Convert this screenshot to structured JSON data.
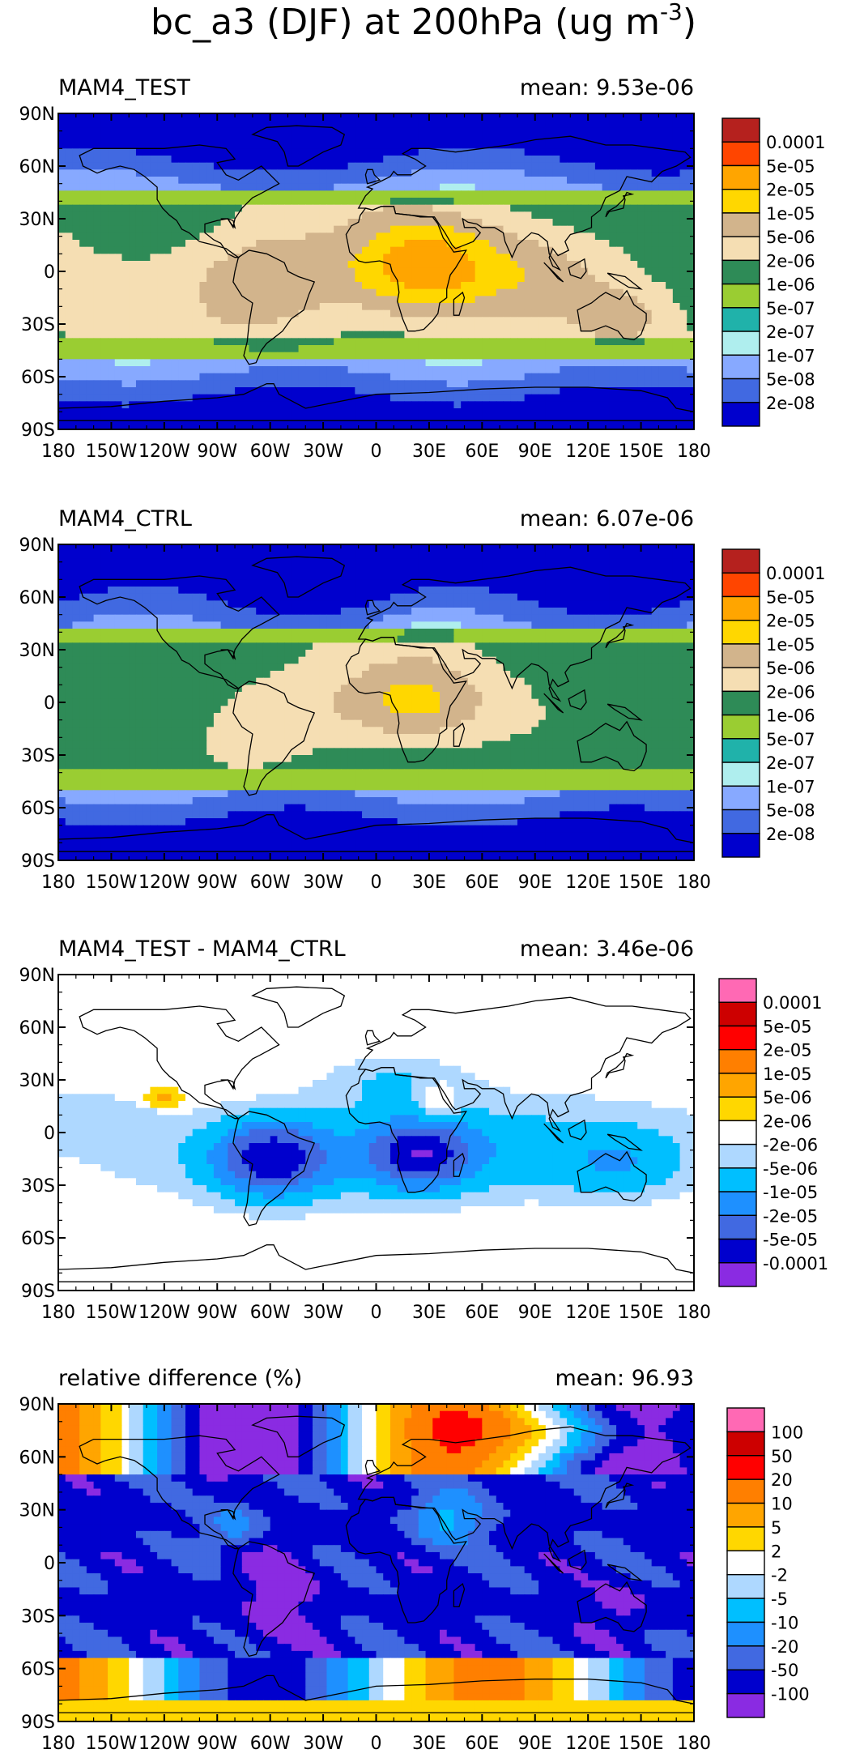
{
  "title": "bc_a3 (DJF) at 200hPa (ug m",
  "title_sup": "-3",
  "title_close": ")",
  "colors": {
    "land": "#000000",
    "frame": "#000000"
  },
  "chart_data": [
    {
      "type": "heatmap",
      "label": "MAM4_TEST",
      "mean_text": "mean: 9.53e-06",
      "lat_ticks": [
        "90N",
        "60N",
        "30N",
        "0",
        "30S",
        "60S",
        "90S"
      ],
      "lon_ticks": [
        "180",
        "150W",
        "120W",
        "90W",
        "60W",
        "30W",
        "0",
        "30E",
        "60E",
        "90E",
        "120E",
        "150E",
        "180"
      ],
      "colorbar": {
        "labels": [
          "0.0001",
          "5e-05",
          "2e-05",
          "1e-05",
          "5e-06",
          "2e-06",
          "1e-06",
          "5e-07",
          "2e-07",
          "1e-07",
          "5e-08",
          "2e-08"
        ],
        "colors": [
          "#b5211e",
          "#ff4500",
          "#ffa500",
          "#ffd700",
          "#d2b48c",
          "#f5deb3",
          "#2e8b57",
          "#9acd32",
          "#20b2aa",
          "#afeeee",
          "#87a9ff",
          "#4169e1",
          "#0000cd"
        ]
      },
      "field": "test"
    },
    {
      "type": "heatmap",
      "label": "MAM4_CTRL",
      "mean_text": "mean: 6.07e-06",
      "lat_ticks": [
        "90N",
        "60N",
        "30N",
        "0",
        "30S",
        "60S",
        "90S"
      ],
      "lon_ticks": [
        "180",
        "150W",
        "120W",
        "90W",
        "60W",
        "30W",
        "0",
        "30E",
        "60E",
        "90E",
        "120E",
        "150E",
        "180"
      ],
      "colorbar": {
        "labels": [
          "0.0001",
          "5e-05",
          "2e-05",
          "1e-05",
          "5e-06",
          "2e-06",
          "1e-06",
          "5e-07",
          "2e-07",
          "1e-07",
          "5e-08",
          "2e-08"
        ],
        "colors": [
          "#b5211e",
          "#ff4500",
          "#ffa500",
          "#ffd700",
          "#d2b48c",
          "#f5deb3",
          "#2e8b57",
          "#9acd32",
          "#20b2aa",
          "#afeeee",
          "#87a9ff",
          "#4169e1",
          "#0000cd"
        ]
      },
      "field": "ctrl"
    },
    {
      "type": "heatmap",
      "label": "MAM4_TEST - MAM4_CTRL",
      "mean_text": "mean: 3.46e-06",
      "lat_ticks": [
        "90N",
        "60N",
        "30N",
        "0",
        "30S",
        "60S",
        "90S"
      ],
      "lon_ticks": [
        "180",
        "150W",
        "120W",
        "90W",
        "60W",
        "30W",
        "0",
        "30E",
        "60E",
        "90E",
        "120E",
        "150E",
        "180"
      ],
      "colorbar": {
        "labels": [
          "0.0001",
          "5e-05",
          "2e-05",
          "1e-05",
          "5e-06",
          "2e-06",
          "-2e-06",
          "-5e-06",
          "-1e-05",
          "-2e-05",
          "-5e-05",
          "-0.0001"
        ],
        "colors": [
          "#ff69b4",
          "#cd0000",
          "#ff0000",
          "#ff7f00",
          "#ffa500",
          "#ffd700",
          "#ffffff",
          "#aed8ff",
          "#00bfff",
          "#1e90ff",
          "#4169e1",
          "#0000cd",
          "#8a2be2"
        ]
      },
      "field": "diff"
    },
    {
      "type": "heatmap",
      "label": "relative difference (%)",
      "mean_text": "mean: 96.93",
      "lat_ticks": [
        "90N",
        "60N",
        "30N",
        "0",
        "30S",
        "60S",
        "90S"
      ],
      "lon_ticks": [
        "180",
        "150W",
        "120W",
        "90W",
        "60W",
        "30W",
        "0",
        "30E",
        "60E",
        "90E",
        "120E",
        "150E",
        "180"
      ],
      "colorbar": {
        "labels": [
          "100",
          "50",
          "20",
          "10",
          "5",
          "2",
          "-2",
          "-5",
          "-10",
          "-20",
          "-50",
          "-100"
        ],
        "colors": [
          "#ff69b4",
          "#cd0000",
          "#ff0000",
          "#ff7f00",
          "#ffa500",
          "#ffd700",
          "#ffffff",
          "#aed8ff",
          "#00bfff",
          "#1e90ff",
          "#4169e1",
          "#0000cd",
          "#8a2be2"
        ]
      },
      "field": "rel"
    }
  ]
}
